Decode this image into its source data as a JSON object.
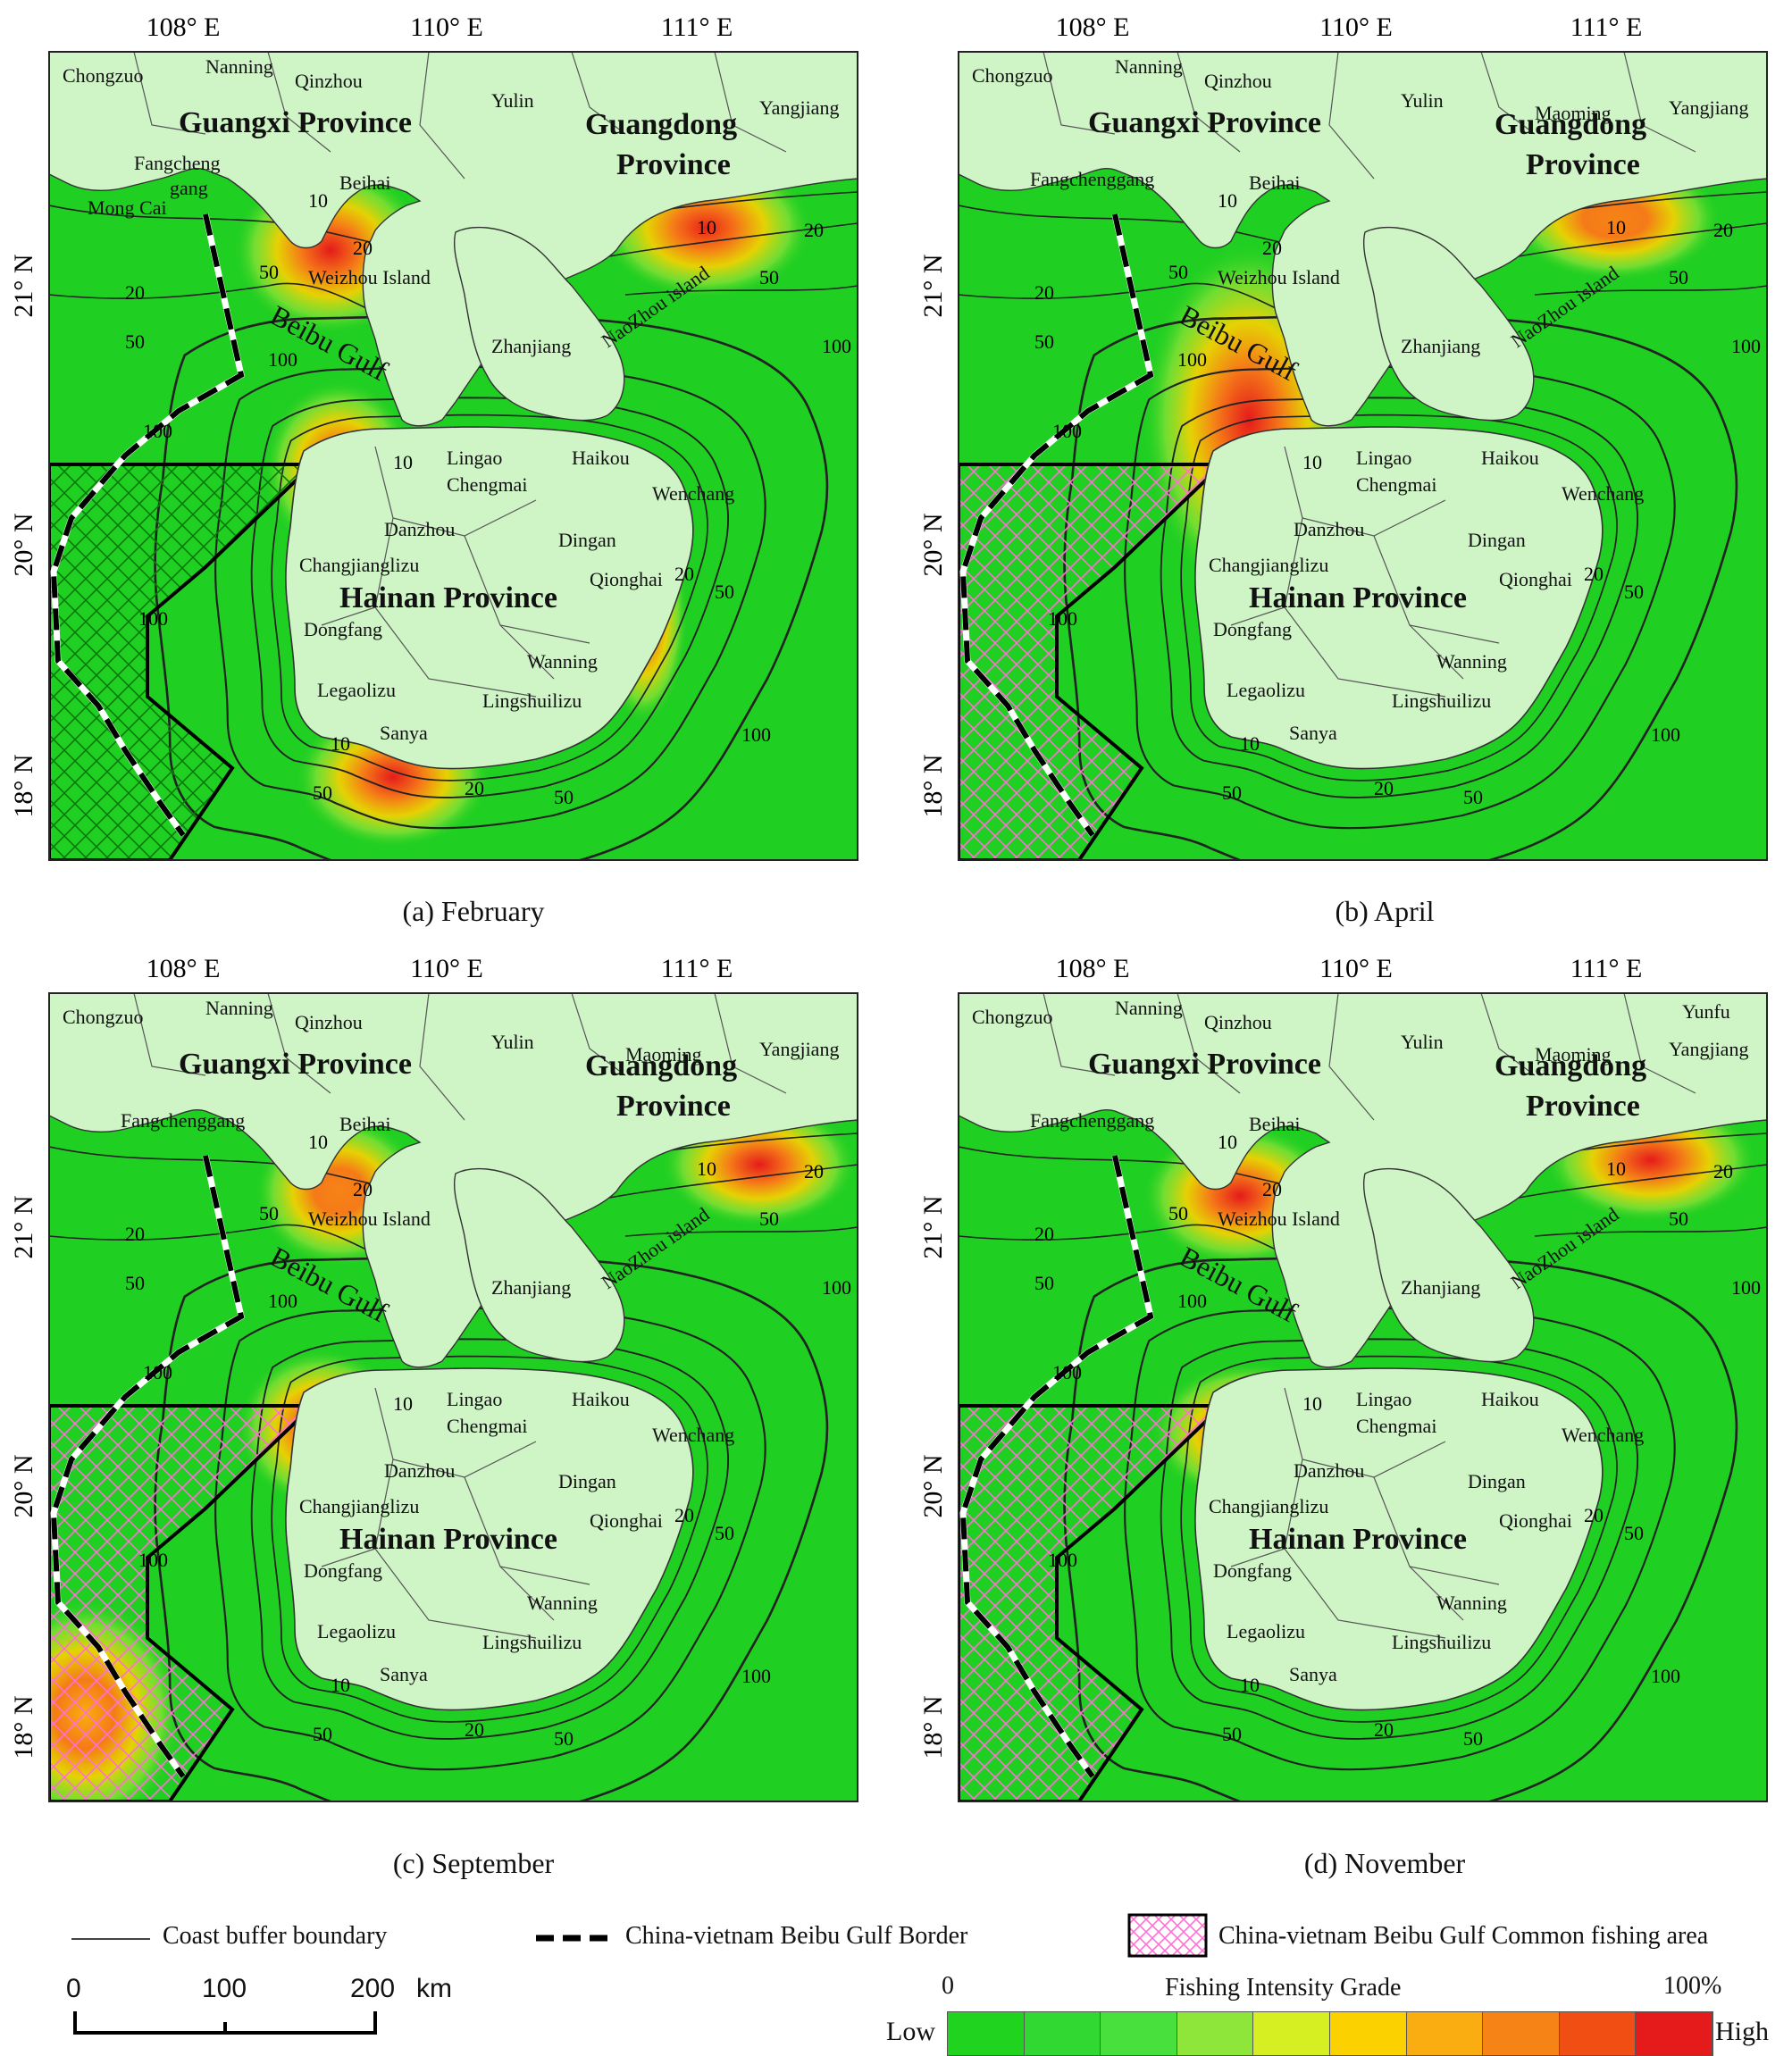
{
  "axes": {
    "lon_labels": [
      "108° E",
      "110° E",
      "111° E"
    ],
    "lat_labels": [
      "21° N",
      "20° N",
      "18° N"
    ]
  },
  "place_labels": {
    "chongzuo": "Chongzuo",
    "nanning": "Nanning",
    "qinzhou": "Qinzhou",
    "yulin": "Yulin",
    "maoming": "Maoming",
    "yangjiang": "Yangjiang",
    "yunfu": "Yunfu",
    "guangxi": "Guangxi Province",
    "guangdong_1": "Guangdong",
    "guangdong_2": "Province",
    "fangchenggang": "Fangchenggang",
    "fangcheng_1": "Fangcheng",
    "fangcheng_2": "gang",
    "mongcai": "Mong Cai",
    "beihai": "Beihai",
    "weizhou": "Weizhou Island",
    "beibu": "Beibu Gulf",
    "zhanjiang": "Zhanjiang",
    "naozhou": "NaoZhou island",
    "lingao": "Lingao",
    "haikou": "Haikou",
    "chengmai": "Chengmai",
    "wenchang": "Wenchang",
    "danzhou": "Danzhou",
    "dingan": "Dingan",
    "changjiang": "Changjianglizu",
    "qionghai": "Qionghai",
    "hainan": "Hainan Province",
    "dongfang": "Dongfang",
    "wanning": "Wanning",
    "ledong": "Legaolizu",
    "lingshui": "Lingshuilizu",
    "sanya": "Sanya"
  },
  "buffer_labels": [
    "10",
    "20",
    "50",
    "100"
  ],
  "panels": [
    {
      "caption": "(a) February",
      "hotspots": [
        "Weizhou Island",
        "Sanya",
        "Lingao",
        "Maoming"
      ]
    },
    {
      "caption": "(b) April",
      "hotspots": [
        "Beibu Gulf",
        "Lingao",
        "Maoming"
      ]
    },
    {
      "caption": "(c) September",
      "hotspots": [
        "Weizhou Island",
        "Lingao",
        "Yangjiang",
        "Common fishing area"
      ]
    },
    {
      "caption": "(d) November",
      "hotspots": [
        "Weizhou Island",
        "Yangjiang",
        "Lingao"
      ]
    }
  ],
  "legend": {
    "buffer": "Coast buffer boundary",
    "border": "China-vietnam Beibu Gulf Border",
    "common_area": "China-vietnam Beibu Gulf Common fishing area",
    "scale_0": "0",
    "scale_100": "100",
    "scale_200": "200",
    "scale_unit": "km",
    "intensity_title": "Fishing Intensity Grade",
    "intensity_min": "0",
    "intensity_max": "100%",
    "low": "Low",
    "high": "High",
    "ramp_colors": [
      "#1fd31f",
      "#32d832",
      "#47e03c",
      "#8fe63a",
      "#d5ef22",
      "#fbd200",
      "#f9ad10",
      "#f68316",
      "#f04e12",
      "#e51b1b"
    ]
  },
  "colors": {
    "land": "#cff5c6",
    "sea": "#1fcf22"
  }
}
